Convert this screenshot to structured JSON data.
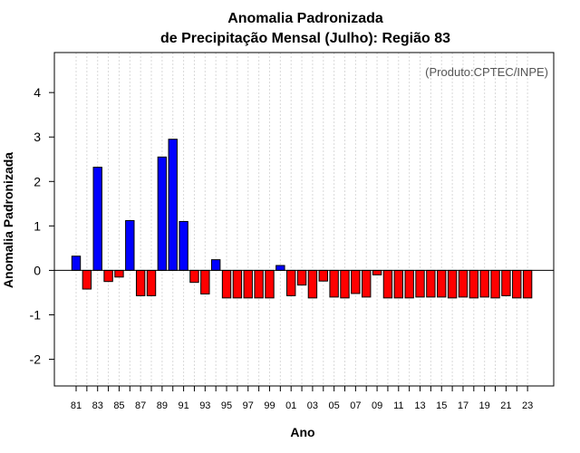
{
  "chart_data": {
    "type": "bar",
    "title": "Anomalia Padronizada",
    "subtitle": "de Precipitação Mensal (Julho): Região 83",
    "xlabel": "Ano",
    "ylabel": "Anomalia Padronizada",
    "credit": "(Produto:CPTEC/INPE)",
    "ylim": [
      -2.6,
      4.9
    ],
    "yticks": [
      "4",
      "3",
      "2",
      "1",
      "0",
      "-1",
      "-2"
    ],
    "ytick_values": [
      4,
      3,
      2,
      1,
      0,
      -1,
      -2
    ],
    "categories": [
      "1981",
      "1982",
      "1983",
      "1984",
      "1985",
      "1986",
      "1987",
      "1988",
      "1989",
      "1990",
      "1991",
      "1992",
      "1993",
      "1994",
      "1995",
      "1996",
      "1997",
      "1998",
      "1999",
      "2000",
      "2001",
      "2002",
      "2003",
      "2004",
      "2005",
      "2006",
      "2007",
      "2008",
      "2009",
      "2010",
      "2011",
      "2012",
      "2013",
      "2014",
      "2015",
      "2016",
      "2017",
      "2018",
      "2019",
      "2020",
      "2021",
      "2022",
      "2023"
    ],
    "xtick_labels": [
      "81",
      "83",
      "85",
      "87",
      "89",
      "91",
      "93",
      "95",
      "97",
      "99",
      "01",
      "03",
      "05",
      "07",
      "09",
      "11",
      "13",
      "15",
      "17",
      "19",
      "21",
      "23"
    ],
    "values": [
      0.32,
      -0.42,
      2.32,
      -0.25,
      -0.15,
      1.12,
      -0.57,
      -0.57,
      2.55,
      2.95,
      1.1,
      -0.27,
      -0.53,
      0.24,
      -0.62,
      -0.62,
      -0.62,
      -0.62,
      -0.62,
      0.11,
      -0.57,
      -0.33,
      -0.62,
      -0.24,
      -0.6,
      -0.62,
      -0.52,
      -0.6,
      -0.1,
      -0.62,
      -0.62,
      -0.62,
      -0.6,
      -0.6,
      -0.6,
      -0.62,
      -0.6,
      -0.62,
      -0.6,
      -0.62,
      -0.57,
      -0.62,
      -0.62
    ],
    "colors": {
      "positive": "#0000ff",
      "negative": "#ff0000",
      "outline": "#000000",
      "grid": "#d9d9d9"
    },
    "grid": true
  }
}
